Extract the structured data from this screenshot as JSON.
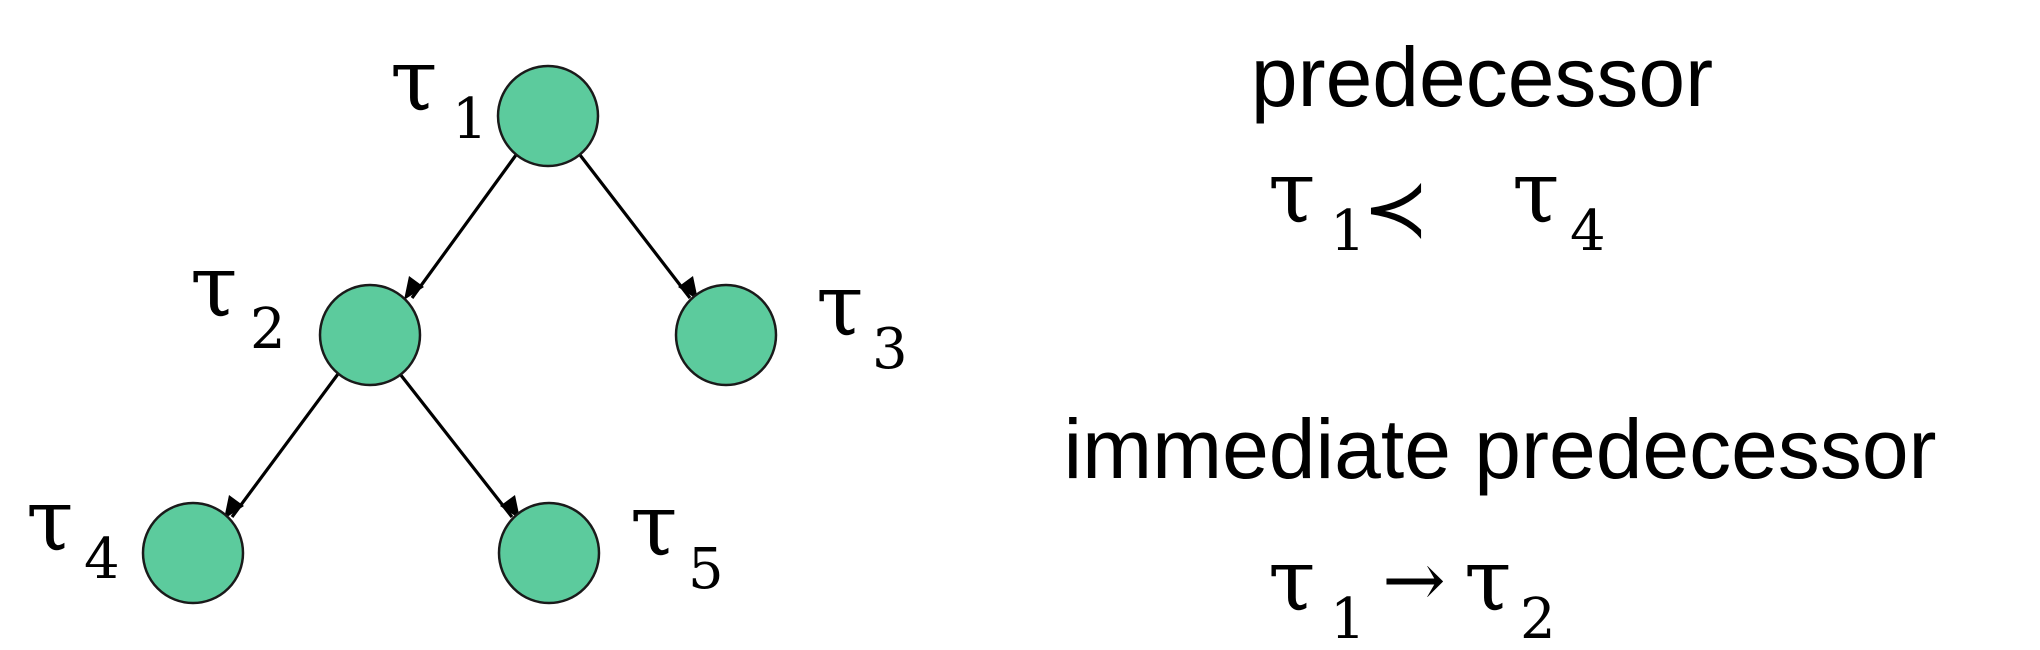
{
  "diagram": {
    "symbol": "τ",
    "node_color": "#5ccb9d",
    "nodes": [
      {
        "id": "t1",
        "subscript": "1"
      },
      {
        "id": "t2",
        "subscript": "2"
      },
      {
        "id": "t3",
        "subscript": "3"
      },
      {
        "id": "t4",
        "subscript": "4"
      },
      {
        "id": "t5",
        "subscript": "5"
      }
    ],
    "edges": [
      {
        "from": "t1",
        "to": "t2"
      },
      {
        "from": "t1",
        "to": "t3"
      },
      {
        "from": "t2",
        "to": "t4"
      },
      {
        "from": "t2",
        "to": "t5"
      }
    ]
  },
  "definitions": {
    "predecessor": {
      "heading": "predecessor",
      "left_subscript": "1",
      "operator": "≺",
      "right_subscript": "4"
    },
    "immediate": {
      "heading": "immediate predecessor",
      "left_subscript": "1",
      "operator": "→",
      "right_subscript": "2"
    }
  }
}
